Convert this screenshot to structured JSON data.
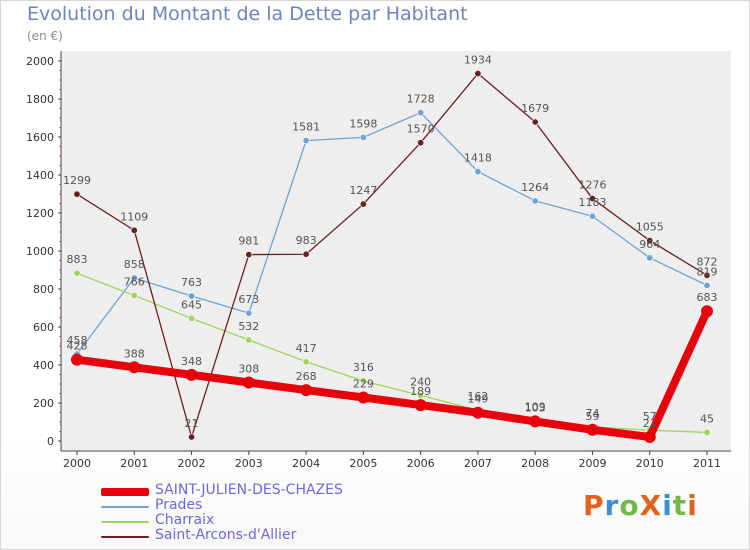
{
  "title": "Evolution du Montant de la Dette par Habitant",
  "subtitle": "(en €)",
  "logo": {
    "text": "ProXiti",
    "colors": [
      "#e2611d",
      "#3a8fd0",
      "#74b84a",
      "#e2611d",
      "#3a8fd0",
      "#74b84a",
      "#e2611d"
    ]
  },
  "chart_data": {
    "type": "line",
    "title": "Evolution du Montant de la Dette par Habitant",
    "ylabel": "(en €)",
    "xlabel": "",
    "x": [
      "2000",
      "2001",
      "2002",
      "2003",
      "2004",
      "2005",
      "2006",
      "2007",
      "2008",
      "2009",
      "2010",
      "2011"
    ],
    "ylim": [
      0,
      2000
    ],
    "yticks": [
      "0",
      "200",
      "400",
      "600",
      "800",
      "1000",
      "1200",
      "1400",
      "1600",
      "1800",
      "2000"
    ],
    "grid": false,
    "legend_position": "bottom-left",
    "series": [
      {
        "name": "SAINT-JULIEN-DES-CHAZES",
        "color": "#e8000b",
        "style": "thick",
        "values": [
          428,
          388,
          348,
          308,
          268,
          229,
          189,
          149,
          103,
          59,
          21,
          683
        ],
        "labels": [
          "428",
          "388",
          "348",
          "308",
          "268",
          "229",
          "189",
          "149",
          "103",
          "59",
          "21",
          "683"
        ]
      },
      {
        "name": "Prades",
        "color": "#6ea3d4",
        "style": "thin",
        "values": [
          458,
          858,
          763,
          673,
          1581,
          1598,
          1728,
          1418,
          1264,
          1183,
          964,
          819
        ],
        "labels": [
          "458",
          "858",
          "763",
          "673",
          "1581",
          "1598",
          "1728",
          "1418",
          "1264",
          "1183",
          "964",
          "819"
        ]
      },
      {
        "name": "Charraix",
        "color": "#9ed55a",
        "style": "thin",
        "values": [
          883,
          766,
          645,
          532,
          417,
          316,
          240,
          162,
          109,
          74,
          57,
          45
        ],
        "labels": [
          "883",
          "766",
          "645",
          "532",
          "417",
          "316",
          "240",
          "162",
          "109",
          "74",
          "57",
          "45"
        ]
      },
      {
        "name": "Saint-Arcons-d'Allier",
        "color": "#6b1f1f",
        "style": "thin",
        "values": [
          1299,
          1109,
          21,
          981,
          983,
          1247,
          1570,
          1934,
          1679,
          1276,
          1055,
          872
        ],
        "labels": [
          "1299",
          "1109",
          "21",
          "981",
          "983",
          "1247",
          "1570",
          "1934",
          "1679",
          "1276",
          "1055",
          "872"
        ]
      }
    ]
  }
}
